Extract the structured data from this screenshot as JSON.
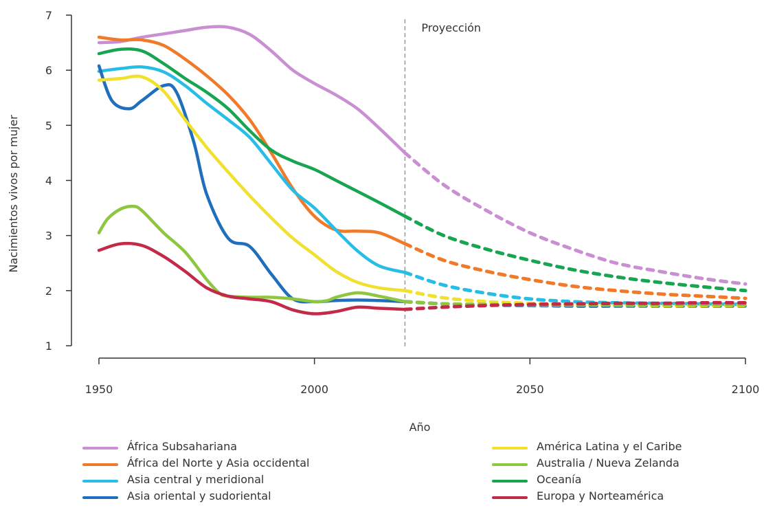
{
  "chart_data": {
    "type": "line",
    "xlabel": "Año",
    "ylabel": "Nacimientos vivos por mujer",
    "annotation": "Proyección",
    "projection_start": 2021,
    "xlim": [
      1950,
      2100
    ],
    "ylim": [
      1,
      7
    ],
    "x_ticks": [
      "1950",
      "2000",
      "2050",
      "2100"
    ],
    "y_ticks": [
      "1",
      "2",
      "3",
      "4",
      "5",
      "6",
      "7"
    ],
    "grid": false,
    "legend_position": "bottom",
    "series": [
      {
        "name": "África Subsahariana",
        "color": "#c98fd2",
        "observed": {
          "x": [
            1950,
            1955,
            1960,
            1965,
            1970,
            1975,
            1980,
            1985,
            1990,
            1995,
            2000,
            2005,
            2010,
            2015,
            2021
          ],
          "y": [
            6.5,
            6.52,
            6.6,
            6.66,
            6.72,
            6.78,
            6.78,
            6.65,
            6.35,
            6.0,
            5.76,
            5.55,
            5.3,
            4.95,
            4.5
          ]
        },
        "projected": {
          "x": [
            2021,
            2030,
            2040,
            2050,
            2060,
            2070,
            2080,
            2090,
            2100
          ],
          "y": [
            4.5,
            3.92,
            3.45,
            3.05,
            2.75,
            2.5,
            2.35,
            2.22,
            2.12
          ]
        }
      },
      {
        "name": "África del Norte y Asia occidental",
        "color": "#f07a2a",
        "observed": {
          "x": [
            1950,
            1955,
            1960,
            1965,
            1970,
            1975,
            1980,
            1985,
            1990,
            1995,
            2000,
            2005,
            2010,
            2015,
            2021
          ],
          "y": [
            6.6,
            6.55,
            6.55,
            6.45,
            6.2,
            5.9,
            5.55,
            5.1,
            4.5,
            3.85,
            3.35,
            3.1,
            3.08,
            3.05,
            2.85
          ]
        },
        "projected": {
          "x": [
            2021,
            2030,
            2040,
            2050,
            2060,
            2070,
            2080,
            2090,
            2100
          ],
          "y": [
            2.85,
            2.55,
            2.35,
            2.2,
            2.08,
            2.0,
            1.94,
            1.9,
            1.86
          ]
        }
      },
      {
        "name": "Asia central y meridional",
        "color": "#27bde6",
        "observed": {
          "x": [
            1950,
            1955,
            1960,
            1965,
            1970,
            1975,
            1980,
            1985,
            1990,
            1995,
            2000,
            2005,
            2010,
            2015,
            2021
          ],
          "y": [
            5.98,
            6.03,
            6.06,
            5.97,
            5.72,
            5.4,
            5.1,
            4.78,
            4.3,
            3.82,
            3.5,
            3.1,
            2.72,
            2.45,
            2.33
          ]
        },
        "projected": {
          "x": [
            2021,
            2030,
            2040,
            2050,
            2060,
            2070,
            2080,
            2090,
            2100
          ],
          "y": [
            2.33,
            2.1,
            1.95,
            1.85,
            1.8,
            1.78,
            1.77,
            1.76,
            1.75
          ]
        }
      },
      {
        "name": "Asia oriental y sudoriental",
        "color": "#1f6fbd",
        "observed": {
          "x": [
            1950,
            1953,
            1957,
            1960,
            1965,
            1968,
            1972,
            1975,
            1980,
            1985,
            1990,
            1995,
            2000,
            2005,
            2010,
            2015,
            2021
          ],
          "y": [
            6.08,
            5.45,
            5.3,
            5.45,
            5.72,
            5.6,
            4.7,
            3.75,
            2.95,
            2.8,
            2.3,
            1.85,
            1.8,
            1.82,
            1.83,
            1.82,
            1.8
          ]
        },
        "projected": {
          "x": [
            2021,
            2030,
            2040,
            2050,
            2060,
            2070,
            2080,
            2090,
            2100
          ],
          "y": [
            1.8,
            1.76,
            1.74,
            1.73,
            1.72,
            1.72,
            1.72,
            1.72,
            1.72
          ]
        }
      },
      {
        "name": "América Latina y el Caribe",
        "color": "#f2e02e",
        "observed": {
          "x": [
            1950,
            1955,
            1960,
            1965,
            1970,
            1975,
            1980,
            1985,
            1990,
            1995,
            2000,
            2005,
            2010,
            2015,
            2021
          ],
          "y": [
            5.82,
            5.85,
            5.88,
            5.62,
            5.1,
            4.6,
            4.15,
            3.72,
            3.32,
            2.95,
            2.65,
            2.35,
            2.15,
            2.05,
            2.0
          ]
        },
        "projected": {
          "x": [
            2021,
            2030,
            2040,
            2050,
            2060,
            2070,
            2080,
            2090,
            2100
          ],
          "y": [
            2.0,
            1.87,
            1.8,
            1.77,
            1.75,
            1.74,
            1.73,
            1.73,
            1.73
          ]
        }
      },
      {
        "name": "Australia / Nueva Zelanda",
        "color": "#8ec63f",
        "observed": {
          "x": [
            1950,
            1952,
            1955,
            1958,
            1960,
            1965,
            1970,
            1975,
            1978,
            1980,
            1985,
            1990,
            1995,
            2000,
            2003,
            2005,
            2010,
            2015,
            2021
          ],
          "y": [
            3.05,
            3.3,
            3.48,
            3.53,
            3.45,
            3.05,
            2.7,
            2.2,
            1.95,
            1.9,
            1.88,
            1.88,
            1.85,
            1.8,
            1.82,
            1.88,
            1.96,
            1.9,
            1.8
          ]
        },
        "projected": {
          "x": [
            2021,
            2030,
            2040,
            2050,
            2060,
            2070,
            2080,
            2090,
            2100
          ],
          "y": [
            1.8,
            1.76,
            1.75,
            1.74,
            1.74,
            1.74,
            1.74,
            1.74,
            1.74
          ]
        }
      },
      {
        "name": "Oceanía",
        "color": "#18a552",
        "observed": {
          "x": [
            1950,
            1955,
            1960,
            1965,
            1970,
            1975,
            1980,
            1985,
            1990,
            1995,
            2000,
            2005,
            2010,
            2015,
            2021
          ],
          "y": [
            6.3,
            6.38,
            6.35,
            6.12,
            5.85,
            5.6,
            5.3,
            4.9,
            4.55,
            4.35,
            4.2,
            4.0,
            3.8,
            3.6,
            3.35
          ]
        },
        "projected": {
          "x": [
            2021,
            2030,
            2040,
            2050,
            2060,
            2070,
            2080,
            2090,
            2100
          ],
          "y": [
            3.35,
            3.0,
            2.75,
            2.55,
            2.38,
            2.25,
            2.15,
            2.07,
            2.0
          ]
        }
      },
      {
        "name": "Europa y Norteamérica",
        "color": "#c22a47",
        "observed": {
          "x": [
            1950,
            1955,
            1960,
            1965,
            1970,
            1975,
            1980,
            1985,
            1990,
            1995,
            2000,
            2005,
            2010,
            2015,
            2021
          ],
          "y": [
            2.73,
            2.85,
            2.82,
            2.62,
            2.35,
            2.05,
            1.9,
            1.85,
            1.8,
            1.65,
            1.58,
            1.62,
            1.7,
            1.68,
            1.66
          ]
        },
        "projected": {
          "x": [
            2021,
            2030,
            2040,
            2050,
            2060,
            2070,
            2080,
            2090,
            2100
          ],
          "y": [
            1.66,
            1.7,
            1.73,
            1.75,
            1.76,
            1.77,
            1.77,
            1.78,
            1.78
          ]
        }
      }
    ]
  }
}
